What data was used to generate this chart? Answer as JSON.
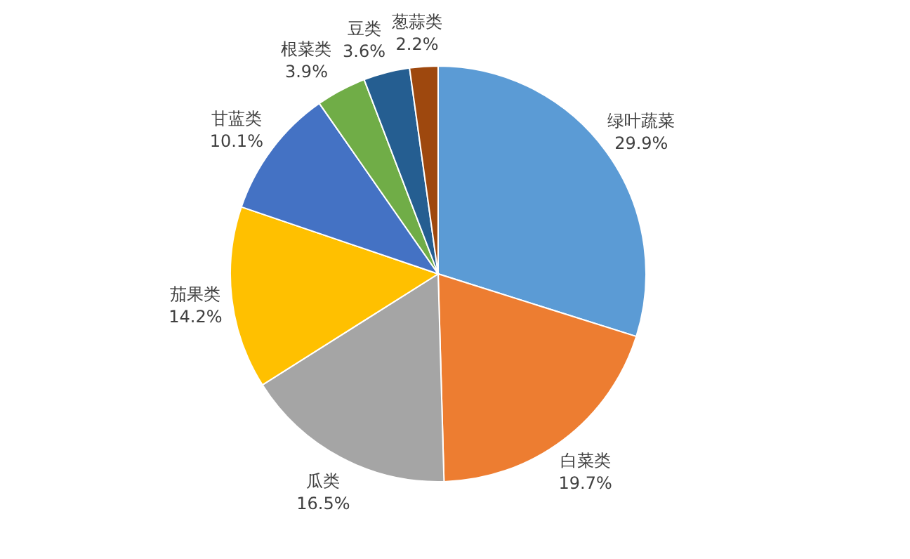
{
  "chart_data": {
    "type": "pie",
    "categories": [
      "绿叶蔬菜",
      "白菜类",
      "瓜类",
      "茄果类",
      "甘蓝类",
      "根菜类",
      "豆类",
      "葱蒜类"
    ],
    "values": [
      29.9,
      19.7,
      16.5,
      14.2,
      10.1,
      3.9,
      3.6,
      2.2
    ],
    "colors": [
      "#5b9bd5",
      "#ed7d31",
      "#a5a5a5",
      "#ffc000",
      "#4472c4",
      "#70ad47",
      "#255e91",
      "#9e480e"
    ],
    "value_labels": [
      "29.9%",
      "19.7%",
      "16.5%",
      "14.2%",
      "10.1%",
      "3.9%",
      "3.6%",
      "2.2%"
    ]
  }
}
